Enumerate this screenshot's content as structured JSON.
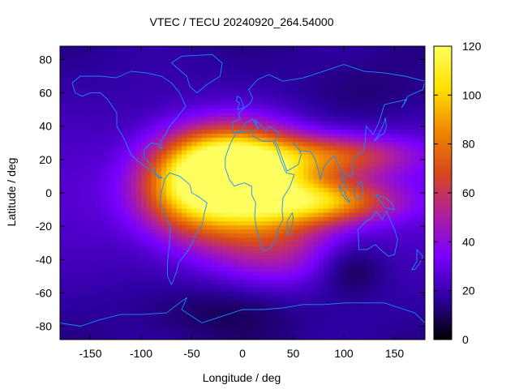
{
  "chart_data": {
    "type": "heatmap",
    "title": "VTEC / TECU 20240920_264.54000",
    "xlabel": "Longitude / deg",
    "ylabel": "Latitude / deg",
    "xlim": [
      -180,
      180
    ],
    "ylim": [
      -88,
      88
    ],
    "x_ticks": [
      -150,
      -100,
      -50,
      0,
      50,
      100,
      150
    ],
    "y_ticks": [
      -80,
      -60,
      -40,
      -20,
      0,
      20,
      40,
      60,
      80
    ],
    "colorbar": {
      "range": [
        0,
        120
      ],
      "ticks": [
        0,
        20,
        40,
        60,
        80,
        100,
        120
      ],
      "palette": [
        "#000000",
        "#2d00a0",
        "#7a00ff",
        "#b0209a",
        "#d84a1a",
        "#f08a00",
        "#ffe000",
        "#ffff60"
      ]
    },
    "overlay": "coastlines",
    "coastline_color": "#1a8cff",
    "grid": false,
    "background_vtec": 16,
    "peaks": [
      {
        "lon": -10,
        "lat": 18,
        "vtec": 95,
        "lon_width": 42,
        "lat_width": 16
      },
      {
        "lon": 5,
        "lat": -5,
        "vtec": 85,
        "lon_width": 60,
        "lat_width": 20
      },
      {
        "lon": -55,
        "lat": 5,
        "vtec": 62,
        "lon_width": 35,
        "lat_width": 18
      },
      {
        "lon": 85,
        "lat": -5,
        "vtec": 70,
        "lon_width": 48,
        "lat_width": 9
      },
      {
        "lon": 90,
        "lat": 22,
        "vtec": 62,
        "lon_width": 55,
        "lat_width": 9
      },
      {
        "lon": 40,
        "lat": -40,
        "vtec": 32,
        "lon_width": 45,
        "lat_width": 14
      }
    ],
    "troughs": [
      {
        "lon": 105,
        "lat": -45,
        "depth": 14,
        "lon_width": 25,
        "lat_width": 12
      },
      {
        "lon": -20,
        "lat": -70,
        "depth": 8,
        "lon_width": 60,
        "lat_width": 12
      },
      {
        "lon": 120,
        "lat": 60,
        "depth": 6,
        "lon_width": 50,
        "lat_width": 15
      }
    ]
  }
}
